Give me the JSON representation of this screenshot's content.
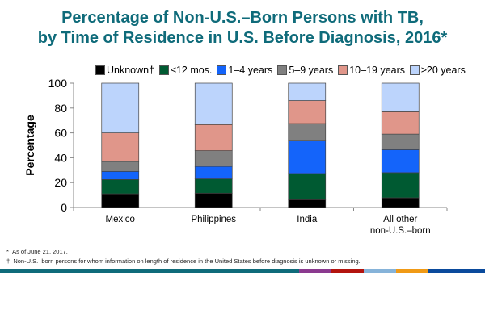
{
  "title_line1": "Percentage of Non-U.S.–Born Persons with TB,",
  "title_line2": "by Time of Residence in U.S. Before Diagnosis, 2016*",
  "chart_data": {
    "type": "bar",
    "stacked": true,
    "title": "Percentage of Non-U.S.–Born Persons with TB, by Time of Residence in U.S. Before Diagnosis, 2016*",
    "xlabel": "",
    "ylabel": "Percentage",
    "ylim": [
      0,
      100
    ],
    "yticks": [
      "0",
      "20",
      "40",
      "60",
      "80",
      "100"
    ],
    "categories": [
      "Mexico",
      "Philippines",
      "India",
      "All other non-U.S.–born"
    ],
    "category_lines": [
      [
        "Mexico"
      ],
      [
        "Philippines"
      ],
      [
        "India"
      ],
      [
        "All other",
        "non-U.S.–born"
      ]
    ],
    "legend_position": "top",
    "series": [
      {
        "name": "Unknown†",
        "color": "#000000",
        "values": [
          11,
          11.5,
          6.3,
          7.8
        ]
      },
      {
        "name": "≤12 mos.",
        "color": "#005a32",
        "values": [
          11.5,
          11.5,
          21,
          20.2
        ]
      },
      {
        "name": "1–4 years",
        "color": "#1464fa",
        "values": [
          6.5,
          10,
          26.7,
          18.5
        ]
      },
      {
        "name": "5–9 years",
        "color": "#808080",
        "values": [
          8,
          12.7,
          13.5,
          12.5
        ]
      },
      {
        "name": "10–19 years",
        "color": "#e0968a",
        "values": [
          23,
          21,
          18.5,
          18
        ]
      },
      {
        "name": "≥20 years",
        "color": "#bcd4fc",
        "values": [
          40,
          33.3,
          14,
          23
        ]
      }
    ]
  },
  "footnotes": [
    {
      "mark": "*",
      "text": "As of June 21, 2017."
    },
    {
      "mark": "†",
      "text": "Non-U.S.–born persons for whom information on length of residence in the United States before diagnosis is unknown or missing."
    }
  ],
  "band_colors": [
    "#0f6b7a",
    "#8b3a8f",
    "#b3140e",
    "#86b3d9",
    "#f09a16",
    "#0a4a9c"
  ]
}
